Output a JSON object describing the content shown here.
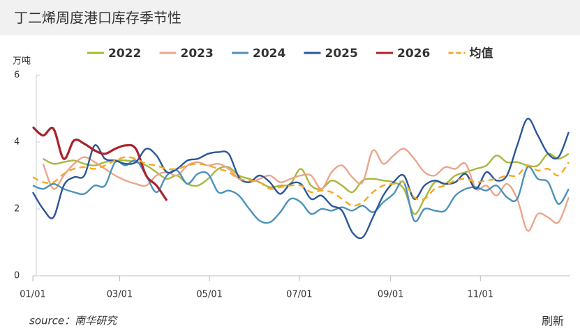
{
  "chart_data": {
    "type": "line",
    "title": "丁二烯周度港口库存季节性",
    "y_unit": "万吨",
    "source": "source：南华研究",
    "refresh": "刷新",
    "x": [
      0,
      7,
      14,
      21,
      28,
      35,
      42,
      49,
      56,
      63,
      70,
      77,
      84,
      91,
      98,
      105,
      112,
      119,
      126,
      133,
      140,
      147,
      154,
      161,
      168,
      175,
      182,
      189,
      196,
      203,
      210,
      217,
      224,
      231,
      238,
      245,
      252,
      259,
      266,
      273,
      280,
      287,
      294,
      301,
      308,
      315,
      322,
      329,
      336,
      343,
      350,
      357,
      364
    ],
    "xlim": [
      0,
      365
    ],
    "xticks": [
      {
        "value": 0,
        "label": "01/01"
      },
      {
        "value": 59,
        "label": "03/01"
      },
      {
        "value": 120,
        "label": "05/01"
      },
      {
        "value": 181,
        "label": "07/01"
      },
      {
        "value": 243,
        "label": "09/01"
      },
      {
        "value": 304,
        "label": "11/01"
      }
    ],
    "ylim": [
      0,
      6
    ],
    "yticks": [
      0,
      2,
      4,
      6
    ],
    "grid": false,
    "legend": "top",
    "series": [
      {
        "name": "2022",
        "color": "#a8b83c",
        "values": [
          null,
          3.5,
          3.35,
          3.4,
          3.45,
          3.35,
          3.3,
          3.4,
          3.45,
          3.45,
          3.4,
          3.3,
          3.1,
          2.9,
          3.0,
          2.75,
          2.7,
          2.9,
          3.2,
          3.25,
          3.0,
          2.9,
          2.8,
          2.65,
          2.7,
          2.75,
          3.2,
          2.7,
          2.6,
          2.85,
          2.7,
          2.5,
          2.85,
          2.9,
          2.85,
          2.8,
          2.6,
          1.85,
          2.3,
          2.8,
          2.75,
          3.0,
          3.1,
          3.2,
          3.3,
          3.6,
          3.4,
          3.4,
          3.3,
          3.3,
          3.65,
          3.5,
          3.65
        ]
      },
      {
        "name": "2023",
        "color": "#eba58c",
        "values": [
          null,
          3.35,
          2.6,
          3.0,
          3.35,
          3.55,
          3.4,
          3.2,
          3.0,
          2.85,
          2.75,
          2.7,
          3.0,
          3.1,
          3.0,
          3.3,
          3.4,
          3.3,
          3.35,
          3.2,
          2.9,
          2.8,
          2.9,
          3.0,
          2.8,
          2.9,
          3.0,
          3.0,
          2.6,
          3.1,
          3.3,
          2.95,
          2.8,
          3.75,
          3.35,
          3.6,
          3.8,
          3.5,
          3.1,
          3.0,
          3.25,
          3.2,
          3.35,
          2.6,
          2.7,
          2.4,
          2.75,
          2.3,
          1.35,
          1.85,
          1.75,
          1.6,
          2.35
        ]
      },
      {
        "name": "2024",
        "color": "#4b92ba",
        "values": [
          2.7,
          2.6,
          2.75,
          2.6,
          2.5,
          2.45,
          2.7,
          2.7,
          3.4,
          3.3,
          3.45,
          3.0,
          2.5,
          3.0,
          3.15,
          2.75,
          3.05,
          3.05,
          2.5,
          2.55,
          2.4,
          2.0,
          1.65,
          1.6,
          1.9,
          2.3,
          2.2,
          1.85,
          2.0,
          1.95,
          2.05,
          1.95,
          2.1,
          1.9,
          2.2,
          2.45,
          2.8,
          1.65,
          2.0,
          1.95,
          1.95,
          2.4,
          2.6,
          2.65,
          2.55,
          2.7,
          2.35,
          2.3,
          3.25,
          2.9,
          2.8,
          2.15,
          2.6
        ]
      },
      {
        "name": "2025",
        "color": "#2b5698",
        "values": [
          2.5,
          2.0,
          1.75,
          2.7,
          2.95,
          3.0,
          3.9,
          3.5,
          3.45,
          3.35,
          3.4,
          3.8,
          3.6,
          3.1,
          3.2,
          3.45,
          3.5,
          3.65,
          3.7,
          3.65,
          2.95,
          2.8,
          3.0,
          2.8,
          2.45,
          2.75,
          2.75,
          2.3,
          2.4,
          2.1,
          1.95,
          1.3,
          1.15,
          1.75,
          2.4,
          2.8,
          3.0,
          2.3,
          2.7,
          2.85,
          2.75,
          2.8,
          3.05,
          2.6,
          3.1,
          2.85,
          3.0,
          3.9,
          4.7,
          4.2,
          3.65,
          3.55,
          4.3
        ]
      },
      {
        "name": "2026",
        "color": "#a8242d",
        "values": [
          4.45,
          4.2,
          4.4,
          3.5,
          4.05,
          3.95,
          3.75,
          3.65,
          3.8,
          3.9,
          3.8,
          3.0,
          2.7,
          2.25,
          null,
          null,
          null,
          null,
          null,
          null,
          null,
          null,
          null,
          null,
          null,
          null,
          null,
          null,
          null,
          null,
          null,
          null,
          null,
          null,
          null,
          null,
          null,
          null,
          null,
          null,
          null,
          null,
          null,
          null,
          null,
          null,
          null,
          null,
          null,
          null,
          null,
          null,
          null
        ]
      },
      {
        "name": "均值",
        "color": "#f6a821",
        "dash": true,
        "values": [
          2.95,
          2.8,
          2.8,
          3.05,
          3.2,
          3.25,
          3.2,
          3.3,
          3.45,
          3.55,
          3.5,
          3.35,
          3.3,
          3.2,
          3.2,
          3.3,
          3.35,
          3.3,
          3.2,
          3.1,
          2.9,
          2.85,
          2.8,
          2.6,
          2.65,
          2.7,
          2.7,
          2.5,
          2.55,
          2.5,
          2.3,
          2.1,
          2.2,
          2.5,
          2.7,
          2.75,
          2.8,
          2.35,
          2.3,
          2.6,
          2.7,
          2.85,
          2.9,
          2.8,
          2.85,
          2.9,
          3.0,
          3.0,
          3.3,
          3.15,
          3.2,
          3.0,
          3.4
        ]
      }
    ]
  }
}
